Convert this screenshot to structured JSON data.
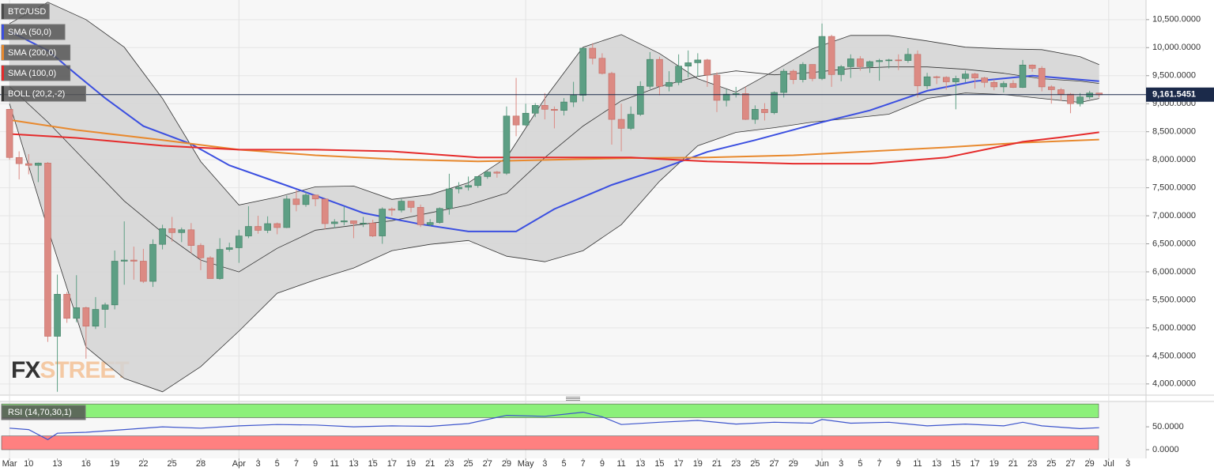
{
  "chart_data": [
    {
      "type": "candlestick",
      "candles": {
        "name": "BTC/USD",
        "up_color": "#5d9f84",
        "down_color": "#dc8a83",
        "color": "#4a4a4a",
        "open": [
          8900,
          8040,
          7930,
          7900,
          7940,
          4850,
          5600,
          5170,
          5360,
          5030,
          5330,
          5410,
          6190,
          6210,
          6190,
          5830,
          6490,
          6770,
          6700,
          6750,
          6470,
          6250,
          5880,
          6400,
          6430,
          6640,
          6810,
          6740,
          6860,
          6790,
          7300,
          7200,
          7370,
          7300,
          6860,
          6890,
          6910,
          6860,
          6870,
          6640,
          7120,
          7100,
          7260,
          7150,
          6840,
          6880,
          7130,
          7480,
          7510,
          7540,
          7700,
          7780,
          7760,
          8780,
          8620,
          8830,
          8970,
          8900,
          8880,
          9030,
          9150,
          9990,
          9810,
          9540,
          8720,
          8560,
          8810,
          9310,
          9790,
          9310,
          9380,
          9670,
          9730,
          9780,
          9510,
          9060,
          9170,
          9180,
          8720,
          8900,
          8840,
          9200,
          9580,
          9430,
          9700,
          9450,
          10200,
          9520,
          9660,
          9800,
          9660,
          9750,
          9770,
          9780,
          9770,
          9880,
          9320,
          9480,
          9470,
          9390,
          9450,
          9530,
          9460,
          9380,
          9300,
          9360,
          9290,
          9690,
          9630,
          9300,
          9250,
          9170,
          9000,
          9120,
          9190
        ],
        "high": [
          8900,
          8150,
          8100,
          7950,
          7960,
          5950,
          5640,
          5940,
          5380,
          5550,
          5450,
          6380,
          6900,
          6450,
          6410,
          6580,
          6840,
          6980,
          6790,
          6870,
          6510,
          6280,
          6600,
          6520,
          6750,
          7170,
          7000,
          6990,
          6880,
          7360,
          7460,
          7420,
          7380,
          7300,
          6940,
          7170,
          6910,
          6980,
          6930,
          7150,
          7150,
          7300,
          7260,
          7200,
          6940,
          7150,
          7750,
          7600,
          7700,
          7700,
          7800,
          7800,
          8950,
          9460,
          9000,
          9010,
          9190,
          8950,
          9100,
          9390,
          10000,
          10080,
          9900,
          9570,
          9000,
          8950,
          9400,
          9920,
          9840,
          9580,
          9880,
          9950,
          9900,
          9800,
          9560,
          9260,
          9300,
          9300,
          8970,
          9010,
          9220,
          9620,
          9610,
          9740,
          9700,
          10430,
          10230,
          9690,
          9880,
          9850,
          9770,
          9800,
          9800,
          9880,
          9990,
          9950,
          9550,
          9500,
          9490,
          9500,
          9590,
          9550,
          9480,
          9430,
          9400,
          9420,
          9780,
          9700,
          9670,
          9330,
          9280,
          9190,
          9190,
          9230,
          9190
        ],
        "low": [
          8000,
          7650,
          7740,
          7600,
          4750,
          3860,
          5090,
          5100,
          4450,
          4980,
          5000,
          5330,
          5770,
          5860,
          5800,
          5730,
          6400,
          6540,
          6530,
          6330,
          6030,
          5880,
          5860,
          6360,
          6160,
          6600,
          6680,
          6690,
          6670,
          6780,
          7080,
          7160,
          7170,
          6760,
          6780,
          6830,
          6600,
          6800,
          6620,
          6500,
          7000,
          7060,
          7060,
          6800,
          6810,
          6860,
          7020,
          7400,
          7450,
          7500,
          7660,
          7680,
          7730,
          8420,
          8600,
          8760,
          8720,
          8560,
          8790,
          8940,
          9040,
          9700,
          9520,
          8270,
          8150,
          8530,
          8780,
          9260,
          9150,
          9220,
          9330,
          9470,
          9480,
          9300,
          8850,
          8950,
          9110,
          8710,
          8640,
          8700,
          8810,
          9110,
          9350,
          9380,
          9400,
          9420,
          9300,
          9400,
          9460,
          9590,
          9550,
          9410,
          9630,
          9600,
          9730,
          9110,
          9260,
          9350,
          9250,
          8900,
          9380,
          9270,
          9290,
          9240,
          9200,
          9280,
          9280,
          9570,
          9220,
          9000,
          9050,
          8830,
          8950,
          9080,
          9110
        ],
        "close": [
          8040,
          7930,
          7900,
          7940,
          4850,
          5600,
          5170,
          5360,
          5030,
          5330,
          5410,
          6190,
          6210,
          6190,
          5830,
          6490,
          6770,
          6700,
          6750,
          6470,
          6250,
          5880,
          6400,
          6430,
          6640,
          6810,
          6740,
          6860,
          6790,
          7300,
          7200,
          7370,
          7300,
          6860,
          6890,
          6910,
          6860,
          6870,
          6640,
          7120,
          7100,
          7260,
          7150,
          6840,
          6880,
          7130,
          7480,
          7510,
          7540,
          7700,
          7780,
          7760,
          8780,
          8620,
          8830,
          8970,
          8900,
          8880,
          9030,
          9150,
          9990,
          9810,
          9540,
          8720,
          8560,
          8810,
          9310,
          9790,
          9310,
          9380,
          9670,
          9730,
          9780,
          9510,
          9060,
          9170,
          9180,
          8720,
          8900,
          8840,
          9200,
          9580,
          9430,
          9700,
          9450,
          10200,
          9520,
          9660,
          9800,
          9660,
          9750,
          9770,
          9780,
          9770,
          9880,
          9320,
          9480,
          9470,
          9390,
          9450,
          9530,
          9460,
          9380,
          9300,
          9360,
          9290,
          9690,
          9630,
          9300,
          9250,
          9170,
          9000,
          9120,
          9190,
          9160
        ]
      },
      "lines": [
        {
          "name": "SMA (50,0)",
          "color": "#3b4fe0",
          "x": [
            0,
            4,
            7,
            10,
            14,
            19,
            23,
            28,
            33,
            37,
            43,
            48,
            53,
            57,
            63,
            68,
            73,
            78,
            85,
            90,
            96,
            101,
            107,
            114
          ],
          "values": [
            10290,
            9950,
            9520,
            9100,
            8600,
            8280,
            7900,
            7600,
            7300,
            7050,
            6850,
            6720,
            6720,
            7120,
            7550,
            7830,
            8140,
            8350,
            8670,
            8880,
            9230,
            9400,
            9500,
            9400
          ]
        },
        {
          "name": "SMA (200,0)",
          "color": "#e8892e",
          "x": [
            0,
            7,
            16,
            24,
            32,
            40,
            49,
            57,
            65,
            73,
            82,
            90,
            98,
            106,
            114
          ],
          "values": [
            8710,
            8530,
            8350,
            8180,
            8080,
            8010,
            7970,
            8000,
            8030,
            8040,
            8080,
            8150,
            8220,
            8305,
            8360
          ]
        },
        {
          "name": "SMA (100,0)",
          "color": "#e52b2b",
          "x": [
            0,
            7,
            16,
            24,
            32,
            40,
            49,
            57,
            65,
            73,
            82,
            90,
            98,
            102,
            106,
            110,
            114
          ],
          "values": [
            8460,
            8390,
            8250,
            8180,
            8180,
            8150,
            8040,
            8040,
            8040,
            7970,
            7930,
            7930,
            8040,
            8180,
            8320,
            8400,
            8490
          ]
        }
      ],
      "bollinger": {
        "name": "BOLL (20,2,-2)",
        "color": "#333333",
        "fill": "#d4d4d4",
        "x": [
          0,
          4,
          8,
          12,
          16,
          20,
          24,
          28,
          32,
          36,
          40,
          44,
          48,
          52,
          56,
          60,
          64,
          68,
          72,
          76,
          80,
          84,
          88,
          92,
          96,
          100,
          104,
          108,
          112,
          114
        ],
        "upper": [
          10430,
          10810,
          10500,
          10008,
          9093,
          7967,
          7193,
          7334,
          7517,
          7531,
          7292,
          7377,
          7588,
          8038,
          9093,
          10008,
          10233,
          9895,
          9445,
          9206,
          9585,
          9979,
          10219,
          10219,
          10120,
          10008,
          9979,
          9965,
          9839,
          9698
        ],
        "middle": [
          9304,
          8671,
          7967,
          7264,
          6701,
          6209,
          5998,
          6420,
          6743,
          6828,
          6912,
          7053,
          7193,
          7404,
          8038,
          8601,
          9051,
          9304,
          9487,
          9585,
          9515,
          9557,
          9628,
          9656,
          9656,
          9614,
          9543,
          9445,
          9403,
          9361
        ],
        "lower": [
          9000,
          6771,
          4660,
          4098,
          3859,
          4309,
          4942,
          5618,
          5857,
          6068,
          6378,
          6490,
          6560,
          6279,
          6180,
          6378,
          6842,
          7616,
          8249,
          8488,
          8572,
          8671,
          8741,
          8812,
          9093,
          9191,
          9163,
          9093,
          9023,
          9093
        ]
      },
      "last_price": {
        "value": 9161.5451,
        "label": "9,161.5451",
        "color": "#1b2a4a"
      },
      "xlim": [
        -1,
        118.9
      ],
      "ylim": [
        3800,
        10850
      ],
      "yticks": [
        {
          "value": 4000,
          "label": "4,000.0000"
        },
        {
          "value": 4500,
          "label": "4,500.0000"
        },
        {
          "value": 5000,
          "label": "5,000.0000"
        },
        {
          "value": 5500,
          "label": "5,500.0000"
        },
        {
          "value": 6000,
          "label": "6,000.0000"
        },
        {
          "value": 6500,
          "label": "6,500.0000"
        },
        {
          "value": 7000,
          "label": "7,000.0000"
        },
        {
          "value": 7500,
          "label": "7,500.0000"
        },
        {
          "value": 8000,
          "label": "8,000.0000"
        },
        {
          "value": 8500,
          "label": "8,500.0000"
        },
        {
          "value": 9000,
          "label": "9,000.0000"
        },
        {
          "value": 9500,
          "label": "9,500.0000"
        },
        {
          "value": 10000,
          "label": "10,000.0000"
        },
        {
          "value": 10500,
          "label": "10,500.0000"
        }
      ],
      "xticks": [
        {
          "value": 0,
          "label": "Mar"
        },
        {
          "value": 2,
          "label": "10"
        },
        {
          "value": 5,
          "label": "13"
        },
        {
          "value": 8,
          "label": "16"
        },
        {
          "value": 11,
          "label": "19"
        },
        {
          "value": 14,
          "label": "22"
        },
        {
          "value": 17,
          "label": "25"
        },
        {
          "value": 20,
          "label": "28"
        },
        {
          "value": 24,
          "label": "Apr"
        },
        {
          "value": 26,
          "label": "3"
        },
        {
          "value": 28,
          "label": "5"
        },
        {
          "value": 30,
          "label": "7"
        },
        {
          "value": 32,
          "label": "9"
        },
        {
          "value": 34,
          "label": "11"
        },
        {
          "value": 36,
          "label": "13"
        },
        {
          "value": 38,
          "label": "15"
        },
        {
          "value": 40,
          "label": "17"
        },
        {
          "value": 42,
          "label": "19"
        },
        {
          "value": 44,
          "label": "21"
        },
        {
          "value": 46,
          "label": "23"
        },
        {
          "value": 48,
          "label": "25"
        },
        {
          "value": 50,
          "label": "27"
        },
        {
          "value": 52,
          "label": "29"
        },
        {
          "value": 54,
          "label": "May"
        },
        {
          "value": 56,
          "label": "3"
        },
        {
          "value": 58,
          "label": "5"
        },
        {
          "value": 60,
          "label": "7"
        },
        {
          "value": 62,
          "label": "9"
        },
        {
          "value": 64,
          "label": "11"
        },
        {
          "value": 66,
          "label": "13"
        },
        {
          "value": 68,
          "label": "15"
        },
        {
          "value": 70,
          "label": "17"
        },
        {
          "value": 72,
          "label": "19"
        },
        {
          "value": 74,
          "label": "21"
        },
        {
          "value": 76,
          "label": "23"
        },
        {
          "value": 78,
          "label": "25"
        },
        {
          "value": 80,
          "label": "27"
        },
        {
          "value": 82,
          "label": "29"
        },
        {
          "value": 85,
          "label": "Jun"
        },
        {
          "value": 87,
          "label": "3"
        },
        {
          "value": 89,
          "label": "5"
        },
        {
          "value": 91,
          "label": "7"
        },
        {
          "value": 93,
          "label": "9"
        },
        {
          "value": 95,
          "label": "11"
        },
        {
          "value": 97,
          "label": "13"
        },
        {
          "value": 99,
          "label": "15"
        },
        {
          "value": 101,
          "label": "17"
        },
        {
          "value": 103,
          "label": "19"
        },
        {
          "value": 105,
          "label": "21"
        },
        {
          "value": 107,
          "label": "23"
        },
        {
          "value": 109,
          "label": "25"
        },
        {
          "value": 111,
          "label": "27"
        },
        {
          "value": 113,
          "label": "29"
        },
        {
          "value": 115,
          "label": "Jul"
        },
        {
          "value": 117,
          "label": "3"
        }
      ]
    },
    {
      "type": "line",
      "series": [
        {
          "name": "RSI (14,70,30,1)",
          "color": "#3d55cc",
          "x": [
            0,
            2,
            4,
            5,
            8,
            12,
            16,
            20,
            24,
            28,
            32,
            36,
            40,
            44,
            48,
            52,
            56,
            60,
            62,
            64,
            68,
            72,
            76,
            80,
            84,
            85,
            88,
            92,
            96,
            100,
            104,
            106,
            108,
            112,
            114
          ],
          "values": [
            47,
            44,
            22,
            36,
            38,
            44,
            50,
            47,
            52,
            55,
            54,
            50,
            52,
            51,
            57,
            75,
            73,
            82,
            72,
            55,
            60,
            64,
            56,
            60,
            58,
            66,
            58,
            60,
            52,
            56,
            52,
            60,
            52,
            46,
            48
          ]
        }
      ],
      "zones": [
        {
          "from": 70,
          "to": 100,
          "color": "#8cf07a"
        },
        {
          "from": 0,
          "to": 30,
          "color": "#ff8080"
        }
      ],
      "ylim": [
        -19,
        102
      ],
      "yticks": [
        {
          "value": 0,
          "label": "0.0000"
        },
        {
          "value": 50,
          "label": "50.0000"
        }
      ]
    }
  ],
  "watermark": {
    "left": "FX",
    "right": "STREET"
  }
}
